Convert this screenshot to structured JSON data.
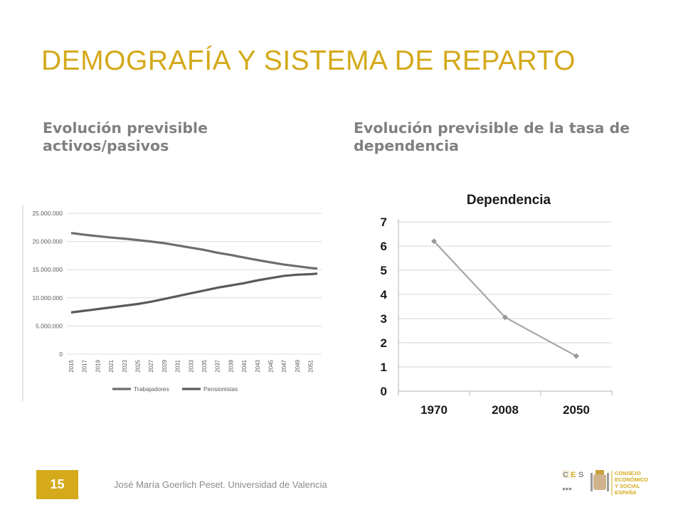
{
  "title": "DEMOGRAFÍA Y SISTEMA DE REPARTO",
  "left": {
    "heading": "Evolución previsible activos/pasivos"
  },
  "right": {
    "heading": "Evolución previsible de la tasa de dependencia"
  },
  "footer": {
    "page_number": "15",
    "author": "José María Goerlich Peset. Universidad de Valencia"
  },
  "logo": {
    "acronym": "CES",
    "text": [
      "CONSEJO",
      "ECONÓMICO",
      "Y SOCIAL",
      "ESPAÑA"
    ]
  },
  "colors": {
    "accent": "#d4a91a",
    "line_dark": "#6d6d6d",
    "line_light": "#a6a6a6"
  },
  "chart_data": [
    {
      "type": "line",
      "title": "",
      "xlabel": "",
      "ylabel": "",
      "ylim": [
        0,
        25000000
      ],
      "y_ticks": [
        "0",
        "5.000.000",
        "10.000.000",
        "15.000.000",
        "20.000.000",
        "25.000.000"
      ],
      "x_ticks": [
        "2015",
        "2017",
        "2019",
        "2021",
        "2023",
        "2025",
        "2027",
        "2029",
        "2031",
        "2033",
        "2035",
        "2037",
        "2039",
        "2041",
        "2043",
        "2045",
        "2047",
        "2049",
        "2051"
      ],
      "x": [
        2015,
        2017,
        2019,
        2021,
        2023,
        2025,
        2027,
        2029,
        2031,
        2033,
        2035,
        2037,
        2039,
        2041,
        2043,
        2045,
        2047,
        2049,
        2051,
        2052
      ],
      "series": [
        {
          "name": "Trabajadores",
          "values": [
            21500000,
            21200000,
            20950000,
            20700000,
            20500000,
            20250000,
            20000000,
            19700000,
            19300000,
            18900000,
            18500000,
            18000000,
            17600000,
            17150000,
            16700000,
            16300000,
            15900000,
            15600000,
            15300000,
            15200000
          ]
        },
        {
          "name": "Pensionistas",
          "values": [
            7400000,
            7700000,
            8000000,
            8300000,
            8600000,
            8900000,
            9300000,
            9800000,
            10300000,
            10800000,
            11300000,
            11800000,
            12200000,
            12600000,
            13100000,
            13500000,
            13900000,
            14100000,
            14200000,
            14300000
          ]
        }
      ],
      "legend": "bottom",
      "grid": "horizontal"
    },
    {
      "type": "line",
      "title": "Dependencia",
      "categories": [
        "1970",
        "2008",
        "2050"
      ],
      "values": [
        6.2,
        3.05,
        1.45
      ],
      "y_ticks": [
        "0",
        "1",
        "2",
        "3",
        "4",
        "5",
        "6",
        "7"
      ],
      "ylim": [
        0,
        7
      ],
      "grid": "horizontal",
      "legend": "none"
    }
  ]
}
